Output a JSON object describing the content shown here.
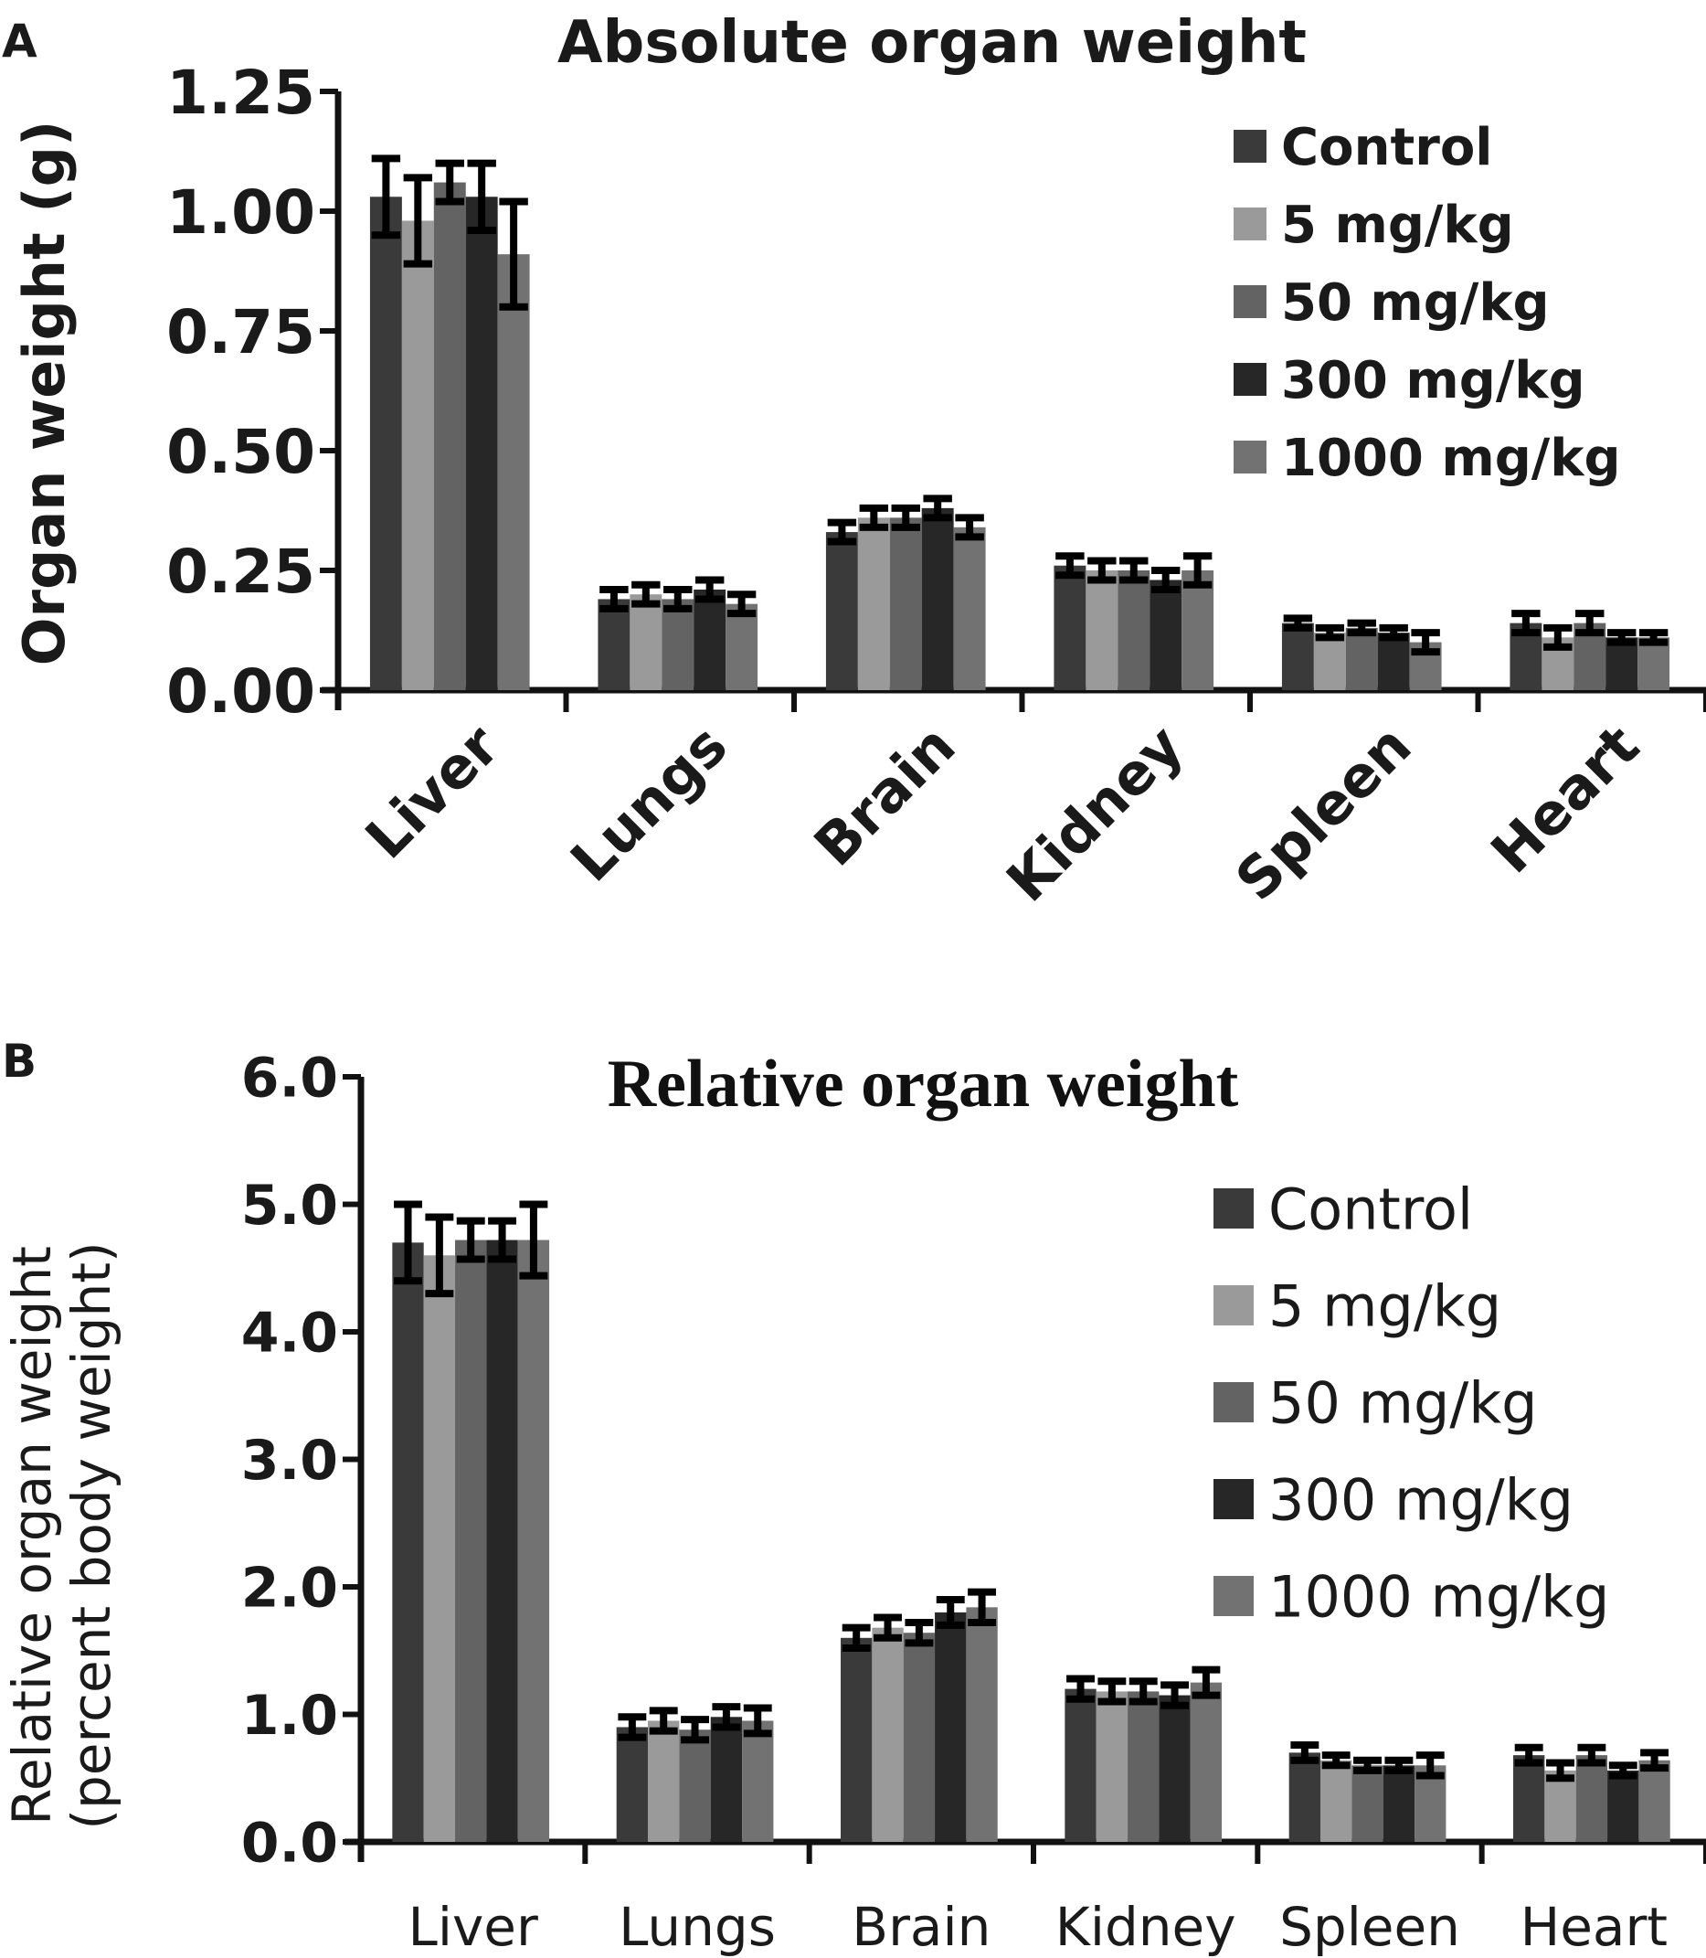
{
  "chart_data": [
    {
      "panel_label": "A",
      "type": "bar",
      "title": "Absolute organ weight",
      "ylabel": "Organ weight (g)",
      "xlabel": "",
      "ylim": [
        0,
        1.25
      ],
      "yticks": [
        "0.00",
        "0.25",
        "0.50",
        "0.75",
        "1.00",
        "1.25"
      ],
      "ytick_values": [
        0,
        0.25,
        0.5,
        0.75,
        1.0,
        1.25
      ],
      "categories": [
        "Liver",
        "Lungs",
        "Brain",
        "Kidney",
        "Spleen",
        "Heart"
      ],
      "legend_position": "top-right",
      "series": [
        {
          "name": "Control",
          "color": "#3a3a3a",
          "values": [
            1.03,
            0.19,
            0.33,
            0.26,
            0.14,
            0.14
          ],
          "errors": [
            0.08,
            0.02,
            0.02,
            0.02,
            0.01,
            0.02
          ]
        },
        {
          "name": "5 mg/kg",
          "color": "#9a9a9a",
          "values": [
            0.98,
            0.2,
            0.36,
            0.25,
            0.12,
            0.11
          ],
          "errors": [
            0.09,
            0.02,
            0.02,
            0.02,
            0.01,
            0.02
          ]
        },
        {
          "name": "50 mg/kg",
          "color": "#636363",
          "values": [
            1.06,
            0.19,
            0.36,
            0.25,
            0.13,
            0.14
          ],
          "errors": [
            0.04,
            0.02,
            0.02,
            0.02,
            0.01,
            0.02
          ]
        },
        {
          "name": "300 mg/kg",
          "color": "#272727",
          "values": [
            1.03,
            0.21,
            0.38,
            0.23,
            0.12,
            0.11
          ],
          "errors": [
            0.07,
            0.02,
            0.02,
            0.02,
            0.01,
            0.01
          ]
        },
        {
          "name": "1000 mg/kg",
          "color": "#727272",
          "values": [
            0.91,
            0.18,
            0.34,
            0.25,
            0.1,
            0.11
          ],
          "errors": [
            0.11,
            0.02,
            0.02,
            0.03,
            0.02,
            0.01
          ]
        }
      ]
    },
    {
      "panel_label": "B",
      "type": "bar",
      "title": "Relative organ weight",
      "ylabel": "Relative organ weight",
      "ylabel2": "(percent body weight)",
      "xlabel": "",
      "ylim": [
        0,
        6.0
      ],
      "yticks": [
        "0.0",
        "1.0",
        "2.0",
        "3.0",
        "4.0",
        "5.0",
        "6.0"
      ],
      "ytick_values": [
        0,
        1,
        2,
        3,
        4,
        5,
        6
      ],
      "categories": [
        "Liver",
        "Lungs",
        "Brain",
        "Kidney",
        "Spleen",
        "Heart"
      ],
      "legend_position": "right",
      "series": [
        {
          "name": "Control",
          "color": "#3a3a3a",
          "values": [
            4.7,
            0.9,
            1.6,
            1.2,
            0.7,
            0.68
          ],
          "errors": [
            0.3,
            0.08,
            0.08,
            0.08,
            0.06,
            0.06
          ]
        },
        {
          "name": "5 mg/kg",
          "color": "#9a9a9a",
          "values": [
            4.6,
            0.95,
            1.68,
            1.18,
            0.64,
            0.56
          ],
          "errors": [
            0.3,
            0.08,
            0.08,
            0.08,
            0.04,
            0.06
          ]
        },
        {
          "name": "50 mg/kg",
          "color": "#636363",
          "values": [
            4.72,
            0.88,
            1.64,
            1.18,
            0.6,
            0.68
          ],
          "errors": [
            0.15,
            0.08,
            0.08,
            0.08,
            0.04,
            0.06
          ]
        },
        {
          "name": "300 mg/kg",
          "color": "#272727",
          "values": [
            4.72,
            0.98,
            1.8,
            1.15,
            0.6,
            0.56
          ],
          "errors": [
            0.15,
            0.08,
            0.1,
            0.08,
            0.04,
            0.04
          ]
        },
        {
          "name": "1000 mg/kg",
          "color": "#727272",
          "values": [
            4.72,
            0.95,
            1.84,
            1.25,
            0.6,
            0.64
          ],
          "errors": [
            0.28,
            0.1,
            0.12,
            0.1,
            0.08,
            0.06
          ]
        }
      ]
    }
  ]
}
